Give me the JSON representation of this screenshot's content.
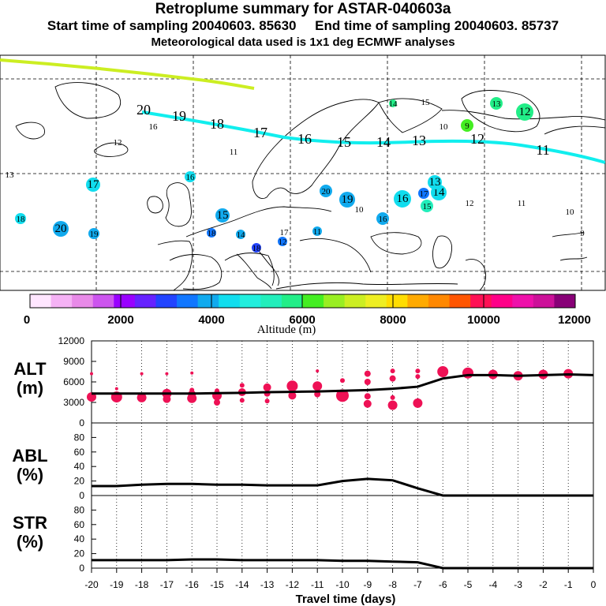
{
  "header": {
    "title": "Retroplume summary for ASTAR-040603a",
    "sampling": "Start time of sampling 20040603. 85630     End time of sampling 20040603. 85737",
    "met": "Meteorological data used is 1x1 deg ECMWF analyses"
  },
  "colorbar": {
    "colors": [
      "#ffe6ff",
      "#f5b2f5",
      "#e88ae8",
      "#cc55ee",
      "#9900ff",
      "#6622ff",
      "#2244ff",
      "#1177ff",
      "#11aaee",
      "#11ddee",
      "#22eedd",
      "#22eebb",
      "#22ee88",
      "#44ee22",
      "#99ee22",
      "#ccee22",
      "#eeee22",
      "#ffdd00",
      "#ffaa00",
      "#ff8800",
      "#ff5500",
      "#ff1155",
      "#ff0088",
      "#ee11aa",
      "#cc1199",
      "#880077"
    ],
    "tick_labels": [
      "0",
      "2000",
      "4000",
      "6000",
      "8000",
      "10000",
      "12000"
    ],
    "title": "Altitude (m)"
  },
  "map": {
    "lime_trace_desc": "older plume segment",
    "trajectory_labels": [
      "20",
      "19",
      "18",
      "17",
      "16",
      "15",
      "14",
      "13",
      "12",
      "11"
    ],
    "cluster_labels": [
      {
        "t": "14",
        "c": "#22ee88"
      },
      {
        "t": "15",
        "c": "#22eebb"
      },
      {
        "t": "13",
        "c": "#22ee88"
      },
      {
        "t": "12",
        "c": "#22ee88"
      },
      {
        "t": "10",
        "c": "#ccee22"
      },
      {
        "t": "9",
        "c": "#44ee22"
      },
      {
        "t": "16",
        "c": "#22eebb"
      },
      {
        "t": "12",
        "c": "#ccee22"
      },
      {
        "t": "11",
        "c": "#eeee22"
      },
      {
        "t": "13",
        "c": "#ccee22"
      },
      {
        "t": "17",
        "c": "#11ddee"
      },
      {
        "t": "16",
        "c": "#11ddee"
      },
      {
        "t": "18",
        "c": "#11ddee"
      },
      {
        "t": "20",
        "c": "#11aaee"
      },
      {
        "t": "19",
        "c": "#11aaee"
      },
      {
        "t": "15",
        "c": "#11aaee"
      },
      {
        "t": "18",
        "c": "#1177ff"
      },
      {
        "t": "14",
        "c": "#11aaee"
      },
      {
        "t": "18",
        "c": "#2244ff"
      },
      {
        "t": "17",
        "c": "#11aaee"
      },
      {
        "t": "12",
        "c": "#1177ff"
      },
      {
        "t": "11",
        "c": "#11aaee"
      },
      {
        "t": "20",
        "c": "#11aaee"
      },
      {
        "t": "19",
        "c": "#11aaee"
      },
      {
        "t": "10",
        "c": "#11ddee"
      },
      {
        "t": "16",
        "c": "#11aaee"
      },
      {
        "t": "16",
        "c": "#11ddee"
      },
      {
        "t": "17",
        "c": "#1177ff"
      },
      {
        "t": "14",
        "c": "#11ddee"
      },
      {
        "t": "13",
        "c": "#11ddee"
      },
      {
        "t": "15",
        "c": "#22eebb"
      },
      {
        "t": "12",
        "c": "#11ddee"
      },
      {
        "t": "11",
        "c": "#22eedd"
      },
      {
        "t": "10",
        "c": "#22eedd"
      },
      {
        "t": "9",
        "c": "#22eedd"
      }
    ]
  },
  "chart_data": [
    {
      "type": "line",
      "title": "ALT",
      "ylabel": "ALT (m)",
      "xlabel": "Travel time (days)",
      "xlim": [
        -20,
        0
      ],
      "ylim": [
        0,
        12000
      ],
      "yticks": [
        "0",
        "3000",
        "6000",
        "9000",
        "12000"
      ],
      "x": [
        -20,
        -19,
        -18,
        -17,
        -16,
        -15,
        -14,
        -13,
        -12,
        -11,
        -10,
        -9,
        -8,
        -7,
        -6,
        -5,
        -4,
        -3,
        -2,
        -1,
        0
      ],
      "values": [
        4300,
        4300,
        4300,
        4300,
        4300,
        4350,
        4400,
        4500,
        4550,
        4600,
        4700,
        4800,
        5000,
        5300,
        6500,
        7000,
        7000,
        6900,
        7000,
        7100,
        7000
      ],
      "clusters": [
        {
          "x": -20,
          "y": 3800,
          "s": 6
        },
        {
          "x": -19,
          "y": 3800,
          "s": 7
        },
        {
          "x": -18,
          "y": 3700,
          "s": 6
        },
        {
          "x": -17,
          "y": 4300,
          "s": 6
        },
        {
          "x": -17,
          "y": 3500,
          "s": 5
        },
        {
          "x": -16,
          "y": 4800,
          "s": 3
        },
        {
          "x": -16,
          "y": 4200,
          "s": 5
        },
        {
          "x": -16,
          "y": 3600,
          "s": 6
        },
        {
          "x": -15,
          "y": 4700,
          "s": 3
        },
        {
          "x": -15,
          "y": 4000,
          "s": 6
        },
        {
          "x": -15,
          "y": 3000,
          "s": 4
        },
        {
          "x": -14,
          "y": 5500,
          "s": 3
        },
        {
          "x": -14,
          "y": 4500,
          "s": 5
        },
        {
          "x": -14,
          "y": 3300,
          "s": 3
        },
        {
          "x": -13,
          "y": 5200,
          "s": 5
        },
        {
          "x": -13,
          "y": 4300,
          "s": 4
        },
        {
          "x": -13,
          "y": 3200,
          "s": 3
        },
        {
          "x": -12,
          "y": 5400,
          "s": 7
        },
        {
          "x": -12,
          "y": 4000,
          "s": 5
        },
        {
          "x": -11,
          "y": 5400,
          "s": 6
        },
        {
          "x": -11,
          "y": 4200,
          "s": 4
        },
        {
          "x": -10,
          "y": 6200,
          "s": 3
        },
        {
          "x": -10,
          "y": 4000,
          "s": 8
        },
        {
          "x": -9,
          "y": 7200,
          "s": 4
        },
        {
          "x": -9,
          "y": 6000,
          "s": 4
        },
        {
          "x": -9,
          "y": 3900,
          "s": 4
        },
        {
          "x": -9,
          "y": 2800,
          "s": 5
        },
        {
          "x": -8,
          "y": 7600,
          "s": 3
        },
        {
          "x": -8,
          "y": 6500,
          "s": 4
        },
        {
          "x": -8,
          "y": 3700,
          "s": 3
        },
        {
          "x": -8,
          "y": 2600,
          "s": 6
        },
        {
          "x": -7,
          "y": 7600,
          "s": 3
        },
        {
          "x": -7,
          "y": 6800,
          "s": 3
        },
        {
          "x": -7,
          "y": 2900,
          "s": 6
        },
        {
          "x": -6,
          "y": 7500,
          "s": 7
        },
        {
          "x": -5,
          "y": 7300,
          "s": 7
        },
        {
          "x": -4,
          "y": 7100,
          "s": 6
        },
        {
          "x": -3,
          "y": 6900,
          "s": 6
        },
        {
          "x": -2,
          "y": 7100,
          "s": 6
        },
        {
          "x": -1,
          "y": 7200,
          "s": 6
        },
        {
          "x": -20,
          "y": 7200,
          "s": 2
        },
        {
          "x": -19,
          "y": 5000,
          "s": 2
        },
        {
          "x": -18,
          "y": 7200,
          "s": 2
        },
        {
          "x": -17,
          "y": 7200,
          "s": 2
        },
        {
          "x": -16,
          "y": 7300,
          "s": 2
        },
        {
          "x": -11,
          "y": 7600,
          "s": 2
        }
      ]
    },
    {
      "type": "line",
      "title": "ABL",
      "ylabel": "ABL (%)",
      "xlabel": "Travel time (days)",
      "xlim": [
        -20,
        0
      ],
      "ylim": [
        0,
        100
      ],
      "yticks": [
        "0",
        "20",
        "40",
        "60",
        "80"
      ],
      "x": [
        -20,
        -19,
        -18,
        -17,
        -16,
        -15,
        -14,
        -13,
        -12,
        -11,
        -10,
        -9,
        -8,
        -7,
        -6,
        -5,
        -4,
        -3,
        -2,
        -1,
        0
      ],
      "values": [
        13,
        13,
        15,
        16,
        16,
        15,
        15,
        14,
        14,
        14,
        20,
        23,
        21,
        10,
        0,
        0,
        0,
        0,
        0,
        0,
        0
      ]
    },
    {
      "type": "line",
      "title": "STR",
      "ylabel": "STR (%)",
      "xlabel": "Travel time (days)",
      "xlim": [
        -20,
        0
      ],
      "ylim": [
        0,
        100
      ],
      "yticks": [
        "0",
        "20",
        "40",
        "60",
        "80"
      ],
      "x": [
        -20,
        -19,
        -18,
        -17,
        -16,
        -15,
        -14,
        -13,
        -12,
        -11,
        -10,
        -9,
        -8,
        -7,
        -6,
        -5,
        -4,
        -3,
        -2,
        -1,
        0
      ],
      "values": [
        11,
        11,
        11,
        11,
        12,
        12,
        11,
        11,
        11,
        11,
        10,
        10,
        9,
        8,
        0,
        0,
        0,
        0,
        0,
        0,
        0
      ]
    }
  ],
  "xaxis": {
    "tick_labels": [
      "-20",
      "-19",
      "-18",
      "-17",
      "-16",
      "-15",
      "-14",
      "-13",
      "-12",
      "-11",
      "-10",
      "-9",
      "-8",
      "-7",
      "-6",
      "-5",
      "-4",
      "-3",
      "-2",
      "-1",
      "0"
    ],
    "title": "Travel time (days)"
  },
  "panel_labels": {
    "alt": [
      "ALT",
      "(m)"
    ],
    "abl": [
      "ABL",
      "(%)"
    ],
    "str": [
      "STR",
      "(%)"
    ]
  },
  "colors": {
    "trajectory": "#11eeee",
    "lime": "#ccee22",
    "cluster": "#ee1155",
    "line": "#000000"
  }
}
